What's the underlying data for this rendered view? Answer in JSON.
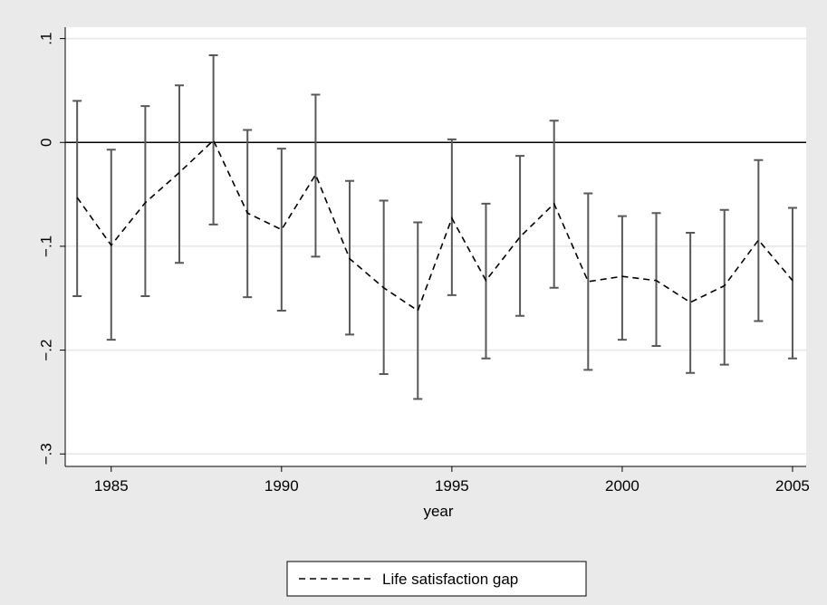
{
  "chart_data": {
    "type": "line",
    "x_label": "year",
    "x": [
      1984,
      1985,
      1986,
      1987,
      1988,
      1989,
      1990,
      1991,
      1992,
      1993,
      1994,
      1995,
      1996,
      1997,
      1998,
      1999,
      2000,
      2001,
      2002,
      2003,
      2004,
      2005
    ],
    "series": [
      {
        "name": "Life satisfaction gap",
        "color": "#000000",
        "values": [
          -0.053,
          -0.099,
          -0.058,
          -0.029,
          0.002,
          -0.068,
          -0.084,
          -0.031,
          -0.112,
          -0.14,
          -0.162,
          -0.073,
          -0.133,
          -0.091,
          -0.059,
          -0.134,
          -0.129,
          -0.133,
          -0.154,
          -0.138,
          -0.094,
          -0.133
        ],
        "lower": [
          -0.148,
          -0.19,
          -0.148,
          -0.116,
          -0.079,
          -0.149,
          -0.162,
          -0.11,
          -0.185,
          -0.223,
          -0.247,
          -0.147,
          -0.208,
          -0.167,
          -0.14,
          -0.219,
          -0.19,
          -0.196,
          -0.222,
          -0.214,
          -0.172,
          -0.208
        ],
        "upper": [
          0.04,
          -0.007,
          0.035,
          0.055,
          0.084,
          0.012,
          -0.006,
          0.046,
          -0.037,
          -0.056,
          -0.077,
          0.003,
          -0.059,
          -0.013,
          0.021,
          -0.049,
          -0.071,
          -0.068,
          -0.087,
          -0.065,
          -0.017,
          -0.063
        ],
        "error_color": "#595959"
      }
    ],
    "xlim": [
      1983.65,
      2005.4
    ],
    "ylim": [
      -0.312,
      0.111
    ],
    "xticks": [
      1985,
      1990,
      1995,
      2000,
      2005
    ],
    "yticks": [
      {
        "value": -0.3,
        "label": "−.3"
      },
      {
        "value": -0.2,
        "label": "−.2"
      },
      {
        "value": -0.1,
        "label": "−.1"
      },
      0,
      {
        "value": 0.1,
        "label": ".1"
      }
    ],
    "reference_line": 0,
    "grid": true,
    "legend": "bottom"
  }
}
